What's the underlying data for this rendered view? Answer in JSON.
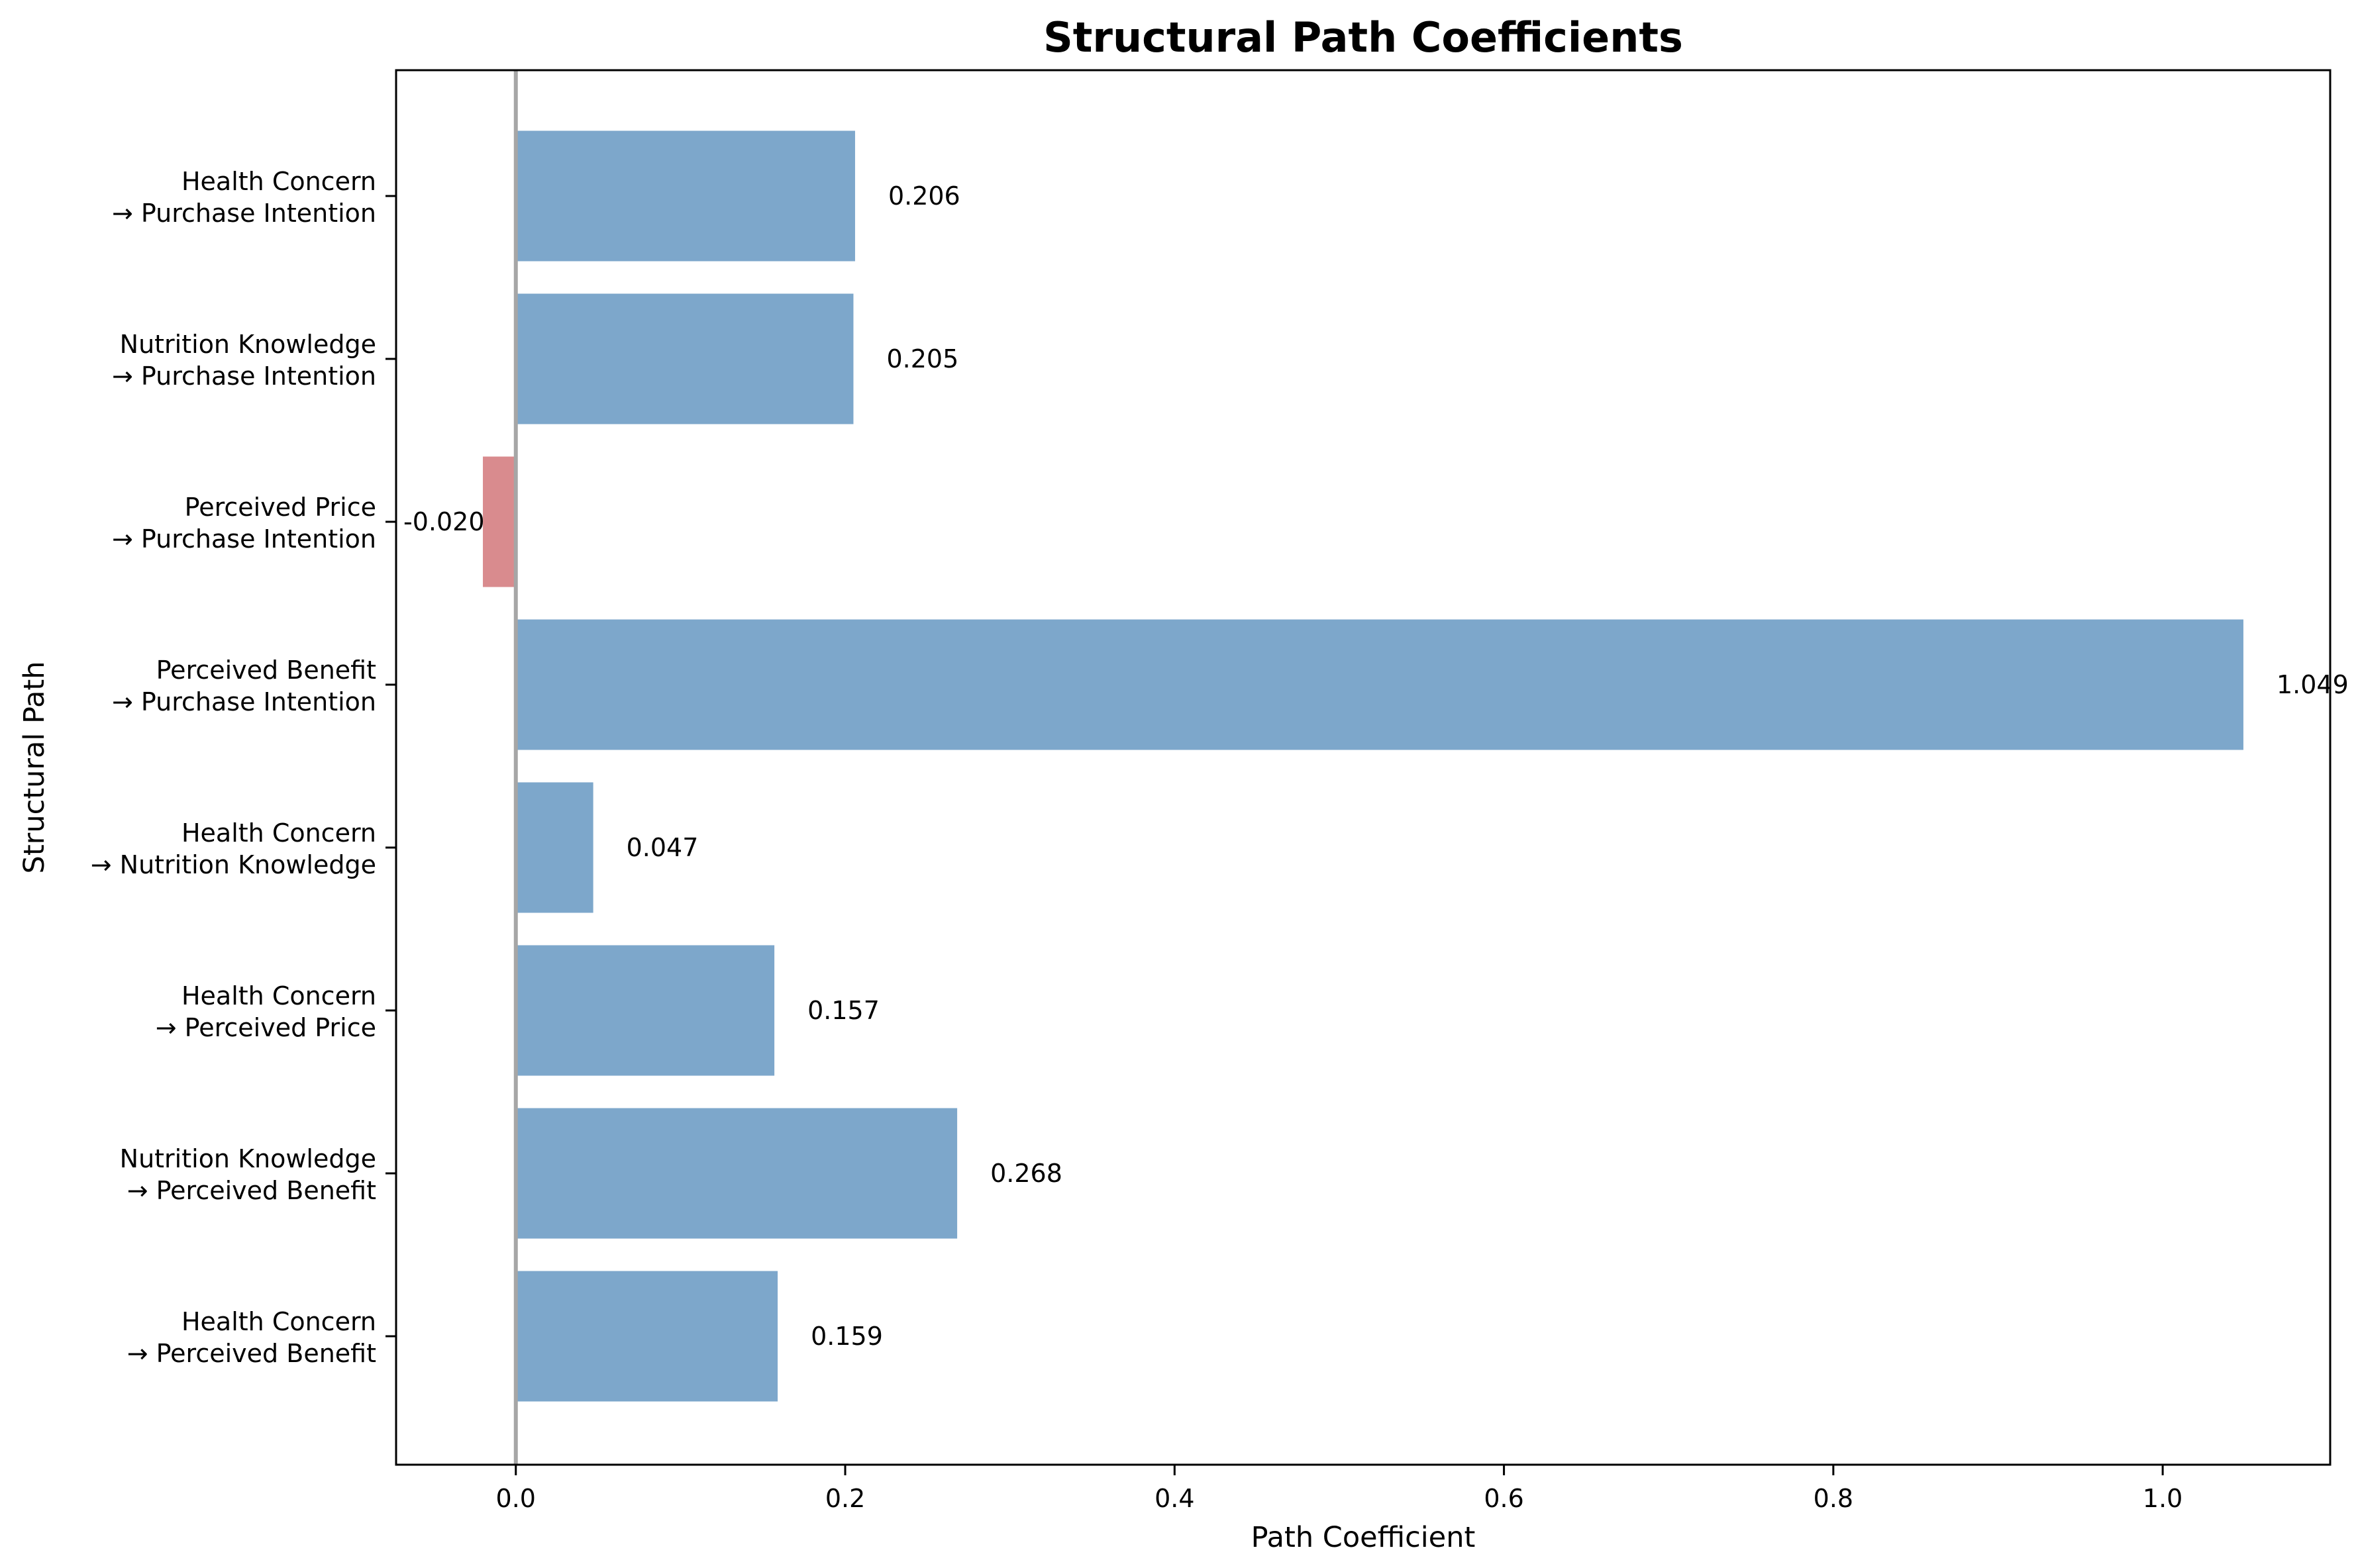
{
  "chart_data": {
    "type": "bar",
    "orientation": "horizontal",
    "title": "Structural Path Coefficients",
    "xlabel": "Path Coefficient",
    "ylabel": "Structural Path",
    "xlim": [
      -0.0727,
      1.1017
    ],
    "xticks": [
      "0.0",
      "0.2",
      "0.4",
      "0.6",
      "0.8",
      "1.0"
    ],
    "xtick_values": [
      0.0,
      0.2,
      0.4,
      0.6,
      0.8,
      1.0
    ],
    "grid": false,
    "legend": "none",
    "zero_line": true,
    "colors": {
      "positive": "#7da7cb",
      "negative": "#d98b8e",
      "zero_line": "#a6a6a6"
    },
    "categories": [
      [
        "Health Concern",
        "→ Perceived Benefit"
      ],
      [
        "Nutrition Knowledge",
        "→ Perceived Benefit"
      ],
      [
        "Health Concern",
        "→ Perceived Price"
      ],
      [
        "Health Concern",
        "→ Nutrition Knowledge"
      ],
      [
        "Perceived Benefit",
        "→ Purchase Intention"
      ],
      [
        "Perceived Price",
        "→ Purchase Intention"
      ],
      [
        "Nutrition Knowledge",
        "→ Purchase Intention"
      ],
      [
        "Health Concern",
        "→ Purchase Intention"
      ]
    ],
    "values": [
      0.159,
      0.268,
      0.157,
      0.047,
      1.049,
      -0.02,
      0.205,
      0.206
    ],
    "value_labels": [
      "0.159",
      "0.268",
      "0.157",
      "0.047",
      "1.049",
      "-0.020",
      "0.205",
      "0.206"
    ]
  }
}
